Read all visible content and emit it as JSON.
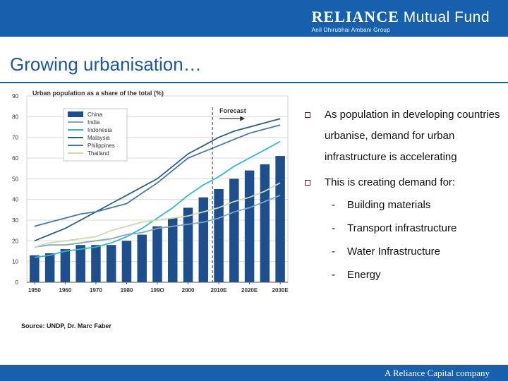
{
  "header": {
    "brand": "RELIANCE",
    "product": "Mutual Fund",
    "group": "Anil Dhirubhai Ambani Group"
  },
  "slide": {
    "title": "Growing urbanisation…",
    "source": "Source: UNDP, Dr. Marc Faber",
    "bullets": [
      "As population in developing countries urbanise, demand for urban infrastructure is accelerating",
      "This is creating demand for:"
    ],
    "sub_bullets": [
      "Building materials",
      "Transport infrastructure",
      "Water Infrastructure",
      "Energy"
    ],
    "dash": "-"
  },
  "footer": {
    "company": "A Reliance Capital company"
  },
  "colors": {
    "bar_blue": "#1660ad",
    "china_bar": "#1d4f8e",
    "india": "#7fa7c2",
    "indonesia": "#32b6d8",
    "malaysia": "#2d5f83",
    "philippines": "#4778a8",
    "thailand": "#c9dcae"
  },
  "chart_data": {
    "type": "bar",
    "title": "Urban population as a share of the total (%)",
    "categories": [
      "1950",
      "1955",
      "1960",
      "1965",
      "1970",
      "1975",
      "1980",
      "1985",
      "1990",
      "1995",
      "2000",
      "2005",
      "2010E",
      "2015E",
      "2020E",
      "2025E",
      "2030E"
    ],
    "x_tick_labels": [
      "1950",
      "1960",
      "1970",
      "1980",
      "199O",
      "2000",
      "2010E",
      "2020E",
      "2030E"
    ],
    "y_ticks": [
      0,
      10,
      20,
      30,
      40,
      50,
      60,
      70,
      80,
      90
    ],
    "ylim": [
      0,
      90
    ],
    "annotation": "Forecast",
    "bar_series": {
      "name": "China",
      "values": [
        13,
        14,
        16,
        18,
        18,
        18,
        20,
        23,
        27,
        31,
        36,
        41,
        45,
        50,
        54,
        57,
        61
      ]
    },
    "series": [
      {
        "name": "India",
        "values": [
          17,
          18,
          18,
          19,
          20,
          21,
          23,
          24,
          26,
          27,
          28,
          29,
          31,
          34,
          36,
          39,
          42
        ]
      },
      {
        "name": "Indonesia",
        "values": [
          12,
          13,
          15,
          16,
          17,
          19,
          22,
          26,
          31,
          36,
          42,
          47,
          51,
          56,
          60,
          64,
          68
        ]
      },
      {
        "name": "Malaysia",
        "values": [
          20,
          23,
          26,
          30,
          34,
          38,
          42,
          46,
          50,
          56,
          62,
          66,
          70,
          73,
          75,
          77,
          79
        ]
      },
      {
        "name": "Philippines",
        "values": [
          27,
          29,
          31,
          33,
          34,
          36,
          38,
          43,
          48,
          54,
          60,
          63,
          66,
          69,
          72,
          74,
          76
        ]
      },
      {
        "name": "Thailand",
        "values": [
          17,
          19,
          20,
          21,
          22,
          25,
          27,
          29,
          30,
          31,
          32,
          34,
          36,
          39,
          41,
          44,
          48
        ]
      }
    ]
  }
}
